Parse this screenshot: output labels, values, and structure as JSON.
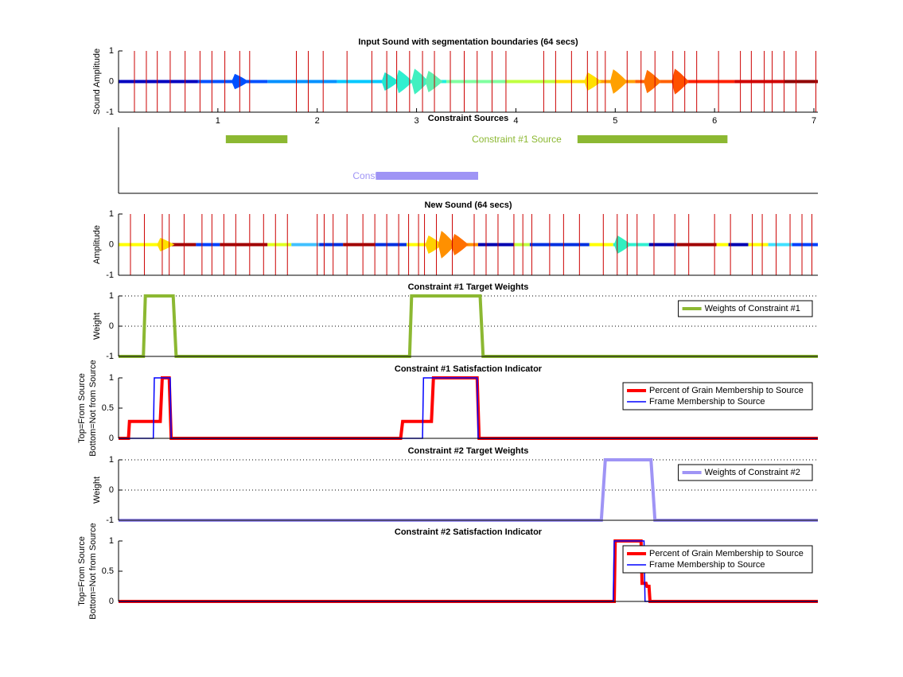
{
  "chart_data": [
    {
      "type": "sound",
      "title": "Input Sound with segmentation boundaries (64 secs)",
      "ylabel": "Sound Amplitude",
      "xlim": [
        0,
        7.04
      ],
      "ylim": [
        -1,
        1
      ],
      "yticks": [
        -1,
        0,
        1
      ],
      "xticks": [
        1,
        2,
        3,
        4,
        5,
        6,
        7
      ],
      "boundary_color": "#cc0000",
      "segments": [
        {
          "start": 0,
          "end": 0.8,
          "color": "#0000c0"
        },
        {
          "start": 0.8,
          "end": 1.5,
          "color": "#0050ff"
        },
        {
          "start": 1.5,
          "end": 2.2,
          "color": "#0090ff"
        },
        {
          "start": 2.2,
          "end": 2.7,
          "color": "#00c8ff"
        },
        {
          "start": 2.7,
          "end": 3.3,
          "color": "#20f0e0"
        },
        {
          "start": 3.3,
          "end": 3.9,
          "color": "#80ffa0"
        },
        {
          "start": 3.9,
          "end": 4.4,
          "color": "#c0ff40"
        },
        {
          "start": 4.4,
          "end": 4.75,
          "color": "#ffe000"
        },
        {
          "start": 4.75,
          "end": 5.2,
          "color": "#ffa000"
        },
        {
          "start": 5.2,
          "end": 5.7,
          "color": "#ff6000"
        },
        {
          "start": 5.7,
          "end": 6.2,
          "color": "#ff2000"
        },
        {
          "start": 6.2,
          "end": 6.7,
          "color": "#d00000"
        },
        {
          "start": 6.7,
          "end": 7.04,
          "color": "#900000"
        }
      ],
      "bursts": [
        {
          "x": 1.17,
          "amplitude": 0.25,
          "color": "#0050ff"
        },
        {
          "x": 2.68,
          "amplitude": 0.3,
          "color": "#20e8d0"
        },
        {
          "x": 2.82,
          "amplitude": 0.38,
          "color": "#30f0d0"
        },
        {
          "x": 2.98,
          "amplitude": 0.42,
          "color": "#40f0c0"
        },
        {
          "x": 3.12,
          "amplitude": 0.35,
          "color": "#60f0b0"
        },
        {
          "x": 4.72,
          "amplitude": 0.3,
          "color": "#ffe000"
        },
        {
          "x": 4.98,
          "amplitude": 0.4,
          "color": "#ffa000"
        },
        {
          "x": 5.32,
          "amplitude": 0.38,
          "color": "#ff7000"
        },
        {
          "x": 5.6,
          "amplitude": 0.42,
          "color": "#ff5000"
        }
      ],
      "boundaries": [
        0.16,
        0.28,
        0.39,
        0.52,
        0.67,
        0.82,
        0.94,
        1.07,
        1.22,
        1.32,
        1.79,
        1.91,
        2.06,
        2.3,
        2.55,
        2.7,
        2.8,
        2.93,
        3.06,
        3.18,
        3.34,
        3.48,
        3.61,
        3.76,
        3.9,
        4.28,
        4.4,
        4.56,
        4.72,
        4.82,
        4.9,
        5.12,
        5.26,
        5.4,
        5.58,
        5.7,
        5.82,
        6.04,
        6.26,
        6.37,
        6.5,
        6.58,
        6.7,
        6.82,
        7.02
      ]
    },
    {
      "type": "ranges",
      "title": "Constraint Sources",
      "xlim": [
        0,
        7.04
      ],
      "series": [
        {
          "name": "Constraint #1 Source",
          "color": "#8cb832",
          "ranges": [
            [
              1.08,
              1.7
            ],
            [
              4.62,
              6.13
            ]
          ]
        },
        {
          "name": "Constraint #2 Source",
          "color": "#9f94f5",
          "ranges": [
            [
              2.59,
              3.62
            ]
          ]
        }
      ]
    },
    {
      "type": "sound",
      "title": "New Sound (64 secs)",
      "ylabel": "Amplitude",
      "xlim": [
        0,
        7.04
      ],
      "ylim": [
        -1,
        1
      ],
      "yticks": [
        -1,
        0,
        1
      ],
      "boundary_color": "#cc0000",
      "segments": [
        {
          "start": 0,
          "end": 0.5,
          "color": "#ffff00"
        },
        {
          "start": 0.5,
          "end": 0.78,
          "color": "#a00000"
        },
        {
          "start": 0.78,
          "end": 1.02,
          "color": "#0040ff"
        },
        {
          "start": 1.02,
          "end": 1.5,
          "color": "#a00000"
        },
        {
          "start": 1.5,
          "end": 1.74,
          "color": "#e0ff20"
        },
        {
          "start": 1.74,
          "end": 2.02,
          "color": "#40c0ff"
        },
        {
          "start": 2.02,
          "end": 2.26,
          "color": "#0030e0"
        },
        {
          "start": 2.26,
          "end": 2.58,
          "color": "#a00000"
        },
        {
          "start": 2.58,
          "end": 2.9,
          "color": "#0030e0"
        },
        {
          "start": 2.9,
          "end": 3.14,
          "color": "#ffff00"
        },
        {
          "start": 3.14,
          "end": 3.62,
          "color": "#ff9000"
        },
        {
          "start": 3.62,
          "end": 3.98,
          "color": "#0000b0"
        },
        {
          "start": 3.98,
          "end": 4.14,
          "color": "#c0ff40"
        },
        {
          "start": 4.14,
          "end": 4.74,
          "color": "#0030e0"
        },
        {
          "start": 4.74,
          "end": 4.98,
          "color": "#ffff00"
        },
        {
          "start": 4.98,
          "end": 5.34,
          "color": "#30f0d0"
        },
        {
          "start": 5.34,
          "end": 5.62,
          "color": "#0000b0"
        },
        {
          "start": 5.62,
          "end": 6.02,
          "color": "#a00000"
        },
        {
          "start": 6.02,
          "end": 6.14,
          "color": "#ffff00"
        },
        {
          "start": 6.14,
          "end": 6.34,
          "color": "#0000b0"
        },
        {
          "start": 6.34,
          "end": 6.54,
          "color": "#ffff00"
        },
        {
          "start": 6.54,
          "end": 6.78,
          "color": "#40e0ff"
        },
        {
          "start": 6.78,
          "end": 7.04,
          "color": "#0040ff"
        }
      ],
      "bursts": [
        {
          "x": 0.42,
          "amplitude": 0.22,
          "color": "#ffe000"
        },
        {
          "x": 3.12,
          "amplitude": 0.3,
          "color": "#ffd000"
        },
        {
          "x": 3.25,
          "amplitude": 0.45,
          "color": "#ff9000"
        },
        {
          "x": 3.38,
          "amplitude": 0.35,
          "color": "#ff7000"
        },
        {
          "x": 5.02,
          "amplitude": 0.3,
          "color": "#30f0c0"
        }
      ],
      "boundaries": [
        0.12,
        0.26,
        0.44,
        0.51,
        0.66,
        0.84,
        0.94,
        1.06,
        1.18,
        1.32,
        1.46,
        1.58,
        1.7,
        2.0,
        2.07,
        2.16,
        2.3,
        2.46,
        2.58,
        2.7,
        2.82,
        2.92,
        3.02,
        3.08,
        3.2,
        3.36,
        3.58,
        3.7,
        3.82,
        3.98,
        4.07,
        4.16,
        4.34,
        4.48,
        4.64,
        4.88,
        5.02,
        5.12,
        5.22,
        5.39,
        5.6,
        5.74,
        6.0,
        6.16,
        6.38,
        6.48,
        6.62,
        6.76,
        6.88,
        6.98
      ]
    },
    {
      "type": "line",
      "title": "Constraint #1 Target Weights",
      "ylabel": "Weight",
      "xlim": [
        0,
        7.04
      ],
      "ylim": [
        -1,
        1
      ],
      "yticks": [
        -1,
        0,
        1
      ],
      "grid": true,
      "legend": "northeast",
      "series": [
        {
          "name": "Weights of Constraint #1",
          "color": "#8cb832",
          "width": 4,
          "x": [
            0,
            0.25,
            0.27,
            0.55,
            0.58,
            2.93,
            2.95,
            3.64,
            3.67,
            7.04
          ],
          "values": [
            -1,
            -1,
            1,
            1,
            -1,
            -1,
            1,
            1,
            -1,
            -1
          ]
        }
      ]
    },
    {
      "type": "line",
      "title": "Constraint #1 Satisfaction Indicator",
      "ylabel": [
        "Top=From Source",
        "Bottom=Not from Source"
      ],
      "xlim": [
        0,
        7.04
      ],
      "ylim": [
        0,
        1
      ],
      "yticks": [
        0,
        0.5,
        1
      ],
      "grid": false,
      "legend": "northeast",
      "series": [
        {
          "name": "Percent of Grain Membership to Source",
          "color": "#ff0000",
          "width": 4,
          "x": [
            0,
            0.1,
            0.11,
            0.42,
            0.44,
            0.51,
            0.53,
            2.84,
            2.86,
            3.15,
            3.17,
            3.61,
            3.63,
            7.04
          ],
          "values": [
            0,
            0,
            0.28,
            0.28,
            1,
            1,
            0,
            0,
            0.28,
            0.28,
            1,
            1,
            0,
            0
          ]
        },
        {
          "name": "Frame Membership to Source",
          "color": "#0000ff",
          "width": 1.5,
          "x": [
            0,
            0.35,
            0.36,
            0.52,
            0.53,
            3.06,
            3.07,
            3.61,
            3.62,
            7.04
          ],
          "values": [
            0,
            0,
            1,
            1,
            0,
            0,
            1,
            1,
            0,
            0
          ]
        }
      ]
    },
    {
      "type": "line",
      "title": "Constraint #2 Target Weights",
      "ylabel": "Weight",
      "xlim": [
        0,
        7.04
      ],
      "ylim": [
        -1,
        1
      ],
      "yticks": [
        -1,
        0,
        1
      ],
      "grid": true,
      "legend": "northeast",
      "series": [
        {
          "name": "Weights of Constraint #2",
          "color": "#9f94f5",
          "width": 4,
          "x": [
            0,
            4.86,
            4.9,
            5.36,
            5.4,
            7.04
          ],
          "values": [
            -1,
            -1,
            1,
            1,
            -1,
            -1
          ]
        }
      ]
    },
    {
      "type": "line",
      "title": "Constraint #2 Satisfaction Indicator",
      "ylabel": [
        "Top=From Source",
        "Bottom=Not from Source"
      ],
      "xlim": [
        0,
        7.04
      ],
      "ylim": [
        0,
        1
      ],
      "yticks": [
        0,
        0.5,
        1
      ],
      "grid": false,
      "legend": "northeast",
      "series": [
        {
          "name": "Percent of Grain Membership to Source",
          "color": "#ff0000",
          "width": 4,
          "x": [
            0,
            4.99,
            5.0,
            5.26,
            5.27,
            5.31,
            5.32,
            5.34,
            5.35,
            7.04
          ],
          "values": [
            0,
            0,
            1,
            1,
            0.3,
            0.3,
            0.25,
            0.25,
            0,
            0
          ]
        },
        {
          "name": "Frame Membership to Source",
          "color": "#0000ff",
          "width": 1.5,
          "x": [
            0,
            4.98,
            4.99,
            5.29,
            5.3,
            7.04
          ],
          "values": [
            0,
            0,
            1,
            1,
            0,
            0
          ]
        }
      ]
    }
  ]
}
